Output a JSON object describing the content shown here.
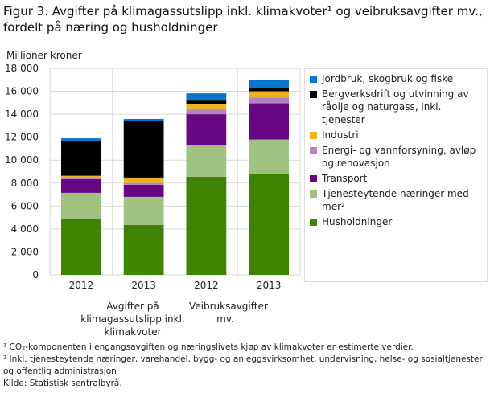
{
  "chart_data": {
    "type": "bar",
    "stacked": true,
    "title": "Figur 3. Avgifter på klimagassutslipp inkl. klimakvoter¹ og veibruksavgifter mv., fordelt på næring og husholdninger",
    "ylabel": "Millioner  kroner",
    "ylim": [
      0,
      18000
    ],
    "yticks": [
      "0",
      "2 000",
      "4 000",
      "6 000",
      "8 000",
      "10 000",
      "12 000",
      "14 000",
      "16 000",
      "18 000"
    ],
    "categories": [
      "2012",
      "2013",
      "2012",
      "2013"
    ],
    "groups": [
      {
        "label": "Avgifter på klimagassutslipp inkl. klimakvoter"
      },
      {
        "label": "Veibruksavgifter mv."
      }
    ],
    "series": [
      {
        "name": "Husholdninger",
        "color": "#3f8400",
        "values": [
          4850,
          4350,
          8550,
          8800
        ]
      },
      {
        "name": "Tjenesteytende  næringer  med mer²",
        "color": "#a0c280",
        "values": [
          2300,
          2450,
          2750,
          3000
        ]
      },
      {
        "name": "Transport",
        "color": "#680686",
        "values": [
          1200,
          1050,
          2700,
          3150
        ]
      },
      {
        "name": "Energi- og vannforsyning, avløp og renovasjon",
        "color": "#b383c5",
        "values": [
          120,
          160,
          420,
          490
        ]
      },
      {
        "name": "Industri",
        "color": "#eab31f",
        "values": [
          170,
          470,
          490,
          560
        ]
      },
      {
        "name": "Bergverksdrift og utvinning av råolje og naturgass, inkl. tjenester",
        "color": "#000000",
        "values": [
          3060,
          4900,
          280,
          280
        ]
      },
      {
        "name": "Jordbruk, skogbruk og fiske",
        "color": "#0776d0",
        "values": [
          200,
          210,
          630,
          700
        ]
      }
    ],
    "legend_position": "right",
    "grid": true
  },
  "notes": [
    "¹ CO₂-komponenten i engangsavgiften og næringslivets kjøp av klimakvoter er estimerte verdier.",
    "² Inkl. tjenesteytende næringer, varehandel, bygg- og anleggsvirksomhet, undervisning, helse- og sosialtjenester og offentlig administrasjon",
    "Kilde: Statistisk sentralbyrå."
  ]
}
